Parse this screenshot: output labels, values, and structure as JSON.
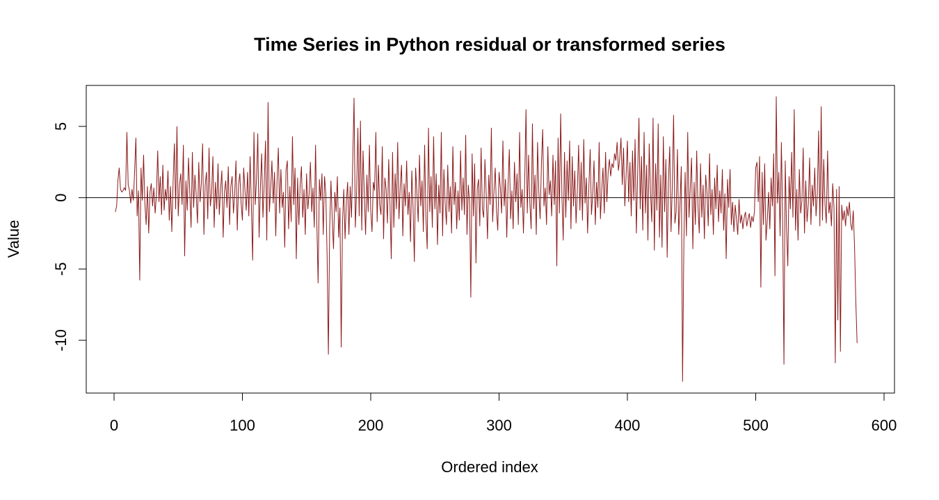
{
  "chart_data": {
    "type": "line",
    "title": "Time Series in Python residual or transformed series",
    "xlabel": "Ordered index",
    "ylabel": "Value",
    "xlim": [
      0,
      600
    ],
    "ylim": [
      -13,
      7
    ],
    "x_ticks": [
      0,
      100,
      200,
      300,
      400,
      500,
      600
    ],
    "y_ticks": [
      -10,
      -5,
      0,
      5
    ],
    "reference_line": 0,
    "grid": false,
    "legend": "none",
    "series_color": "#8B1A1A",
    "series": [
      {
        "x_start": 1,
        "x_step": 1,
        "values": [
          -1.0,
          -0.6,
          1.2,
          2.1,
          0.6,
          0.4,
          0.5,
          0.7,
          0.5,
          4.6,
          0.9,
          0.5,
          -0.4,
          0.6,
          -0.2,
          1.8,
          4.2,
          -1.3,
          0.5,
          -5.8,
          2.1,
          -0.2,
          3.0,
          -0.4,
          -1.9,
          0.8,
          -2.5,
          0.4,
          1.0,
          -0.6,
          0.7,
          -1.1,
          0.2,
          3.3,
          -0.3,
          1.5,
          -1.2,
          2.3,
          -0.9,
          0.6,
          -0.2,
          1.9,
          -1.6,
          0.8,
          -2.4,
          1.1,
          3.8,
          -0.8,
          5.0,
          -1.3,
          0.9,
          1.7,
          -0.5,
          3.7,
          -4.1,
          1.2,
          -0.9,
          2.8,
          0.4,
          -2.1,
          3.2,
          -0.7,
          1.6,
          0.2,
          -1.8,
          2.5,
          -0.3,
          1.0,
          3.8,
          -2.6,
          0.9,
          1.8,
          -1.5,
          3.5,
          -0.6,
          0.3,
          2.9,
          -2.1,
          1.1,
          -0.8,
          2.4,
          -1.2,
          0.6,
          1.9,
          -2.8,
          0.4,
          1.2,
          -0.7,
          2.2,
          -1.9,
          0.8,
          1.5,
          -1.1,
          0.3,
          2.6,
          -2.3,
          0.9,
          1.7,
          -0.4,
          -1.6,
          2.1,
          0.5,
          -0.9,
          1.8,
          -1.3,
          2.9,
          -0.6,
          -4.4,
          4.6,
          -0.5,
          1.3,
          4.5,
          -2.8,
          0.7,
          3.1,
          -1.4,
          1.0,
          4.0,
          -3.0,
          6.7,
          -1.0,
          0.6,
          2.6,
          -0.4,
          1.8,
          -2.7,
          1.2,
          3.5,
          -1.1,
          2.0,
          -0.7,
          0.4,
          -3.5,
          1.9,
          2.6,
          -2.2,
          0.8,
          -1.7,
          4.3,
          -0.5,
          2.1,
          -4.3,
          1.4,
          -1.9,
          0.9,
          2.2,
          -1.4,
          0.6,
          -2.6,
          1.7,
          -0.8,
          0.3,
          2.5,
          -1.0,
          0.7,
          -2.1,
          3.7,
          -1.8,
          -6.0,
          1.3,
          -0.2,
          1.7,
          -2.6,
          1.5,
          0.3,
          -4.1,
          -11.0,
          -2.2,
          1.2,
          -1.5,
          -3.6,
          0.4,
          -1.0,
          1.5,
          -2.8,
          -0.7,
          -10.5,
          -1.8,
          0.6,
          -2.9,
          -0.3,
          1.1,
          -2.6,
          0.8,
          -1.4,
          2.7,
          7.0,
          -2.1,
          0.4,
          4.9,
          -1.3,
          5.4,
          -2.3,
          3.3,
          0.2,
          -2.6,
          1.6,
          -1.0,
          3.7,
          -0.9,
          -2.4,
          1.1,
          0.5,
          4.6,
          -1.7,
          2.3,
          -0.5,
          -1.2,
          3.6,
          -2.9,
          1.4,
          0.6,
          -1.8,
          2.7,
          -0.4,
          -4.3,
          3.2,
          -2.1,
          1.7,
          -0.8,
          3.9,
          -1.5,
          0.8,
          2.3,
          -2.7,
          1.0,
          -0.6,
          2.6,
          -1.2,
          0.4,
          -3.1,
          1.9,
          -0.7,
          -4.5,
          2.1,
          0.3,
          -1.7,
          3.0,
          -0.6,
          1.2,
          -2.4,
          3.7,
          -1.4,
          -3.6,
          4.9,
          -1.0,
          1.5,
          -2.1,
          4.3,
          -0.8,
          1.7,
          -3.3,
          0.9,
          -1.1,
          4.6,
          -2.7,
          2.0,
          -0.4,
          -1.9,
          2.3,
          -1.0,
          0.8,
          -2.5,
          3.6,
          -0.5,
          1.1,
          -2.2,
          0.5,
          -1.6,
          3.3,
          -0.9,
          1.4,
          -1.2,
          4.4,
          -2.6,
          0.9,
          -0.3,
          -7.0,
          3.1,
          -1.3,
          2.4,
          -4.6,
          0.6,
          1.3,
          -2.0,
          3.5,
          -0.8,
          -1.4,
          2.7,
          0.2,
          -2.9,
          1.6,
          -0.5,
          4.9,
          -1.7,
          0.4,
          2.1,
          -0.9,
          -2.3,
          1.8,
          0.7,
          -1.1,
          4.0,
          -0.6,
          1.3,
          -2.8,
          0.9,
          3.4,
          -1.5,
          0.5,
          -2.2,
          2.5,
          -0.3,
          1.7,
          -1.9,
          4.6,
          -0.7,
          0.6,
          -2.5,
          1.2,
          6.2,
          -1.1,
          3.0,
          -0.4,
          -2.2,
          5.2,
          -0.8,
          1.6,
          -2.6,
          3.9,
          0.4,
          -1.5,
          2.3,
          4.8,
          -0.6,
          0.7,
          -1.9,
          3.6,
          0.2,
          1.2,
          -1.3,
          3.0,
          -0.5,
          2.6,
          -4.8,
          4.2,
          -1.1,
          5.9,
          0.1,
          -3.0,
          3.2,
          -1.4,
          2.6,
          -0.2,
          4.0,
          -2.2,
          2.9,
          -0.6,
          1.9,
          -1.8,
          0.5,
          3.7,
          -0.9,
          2.5,
          -1.6,
          4.1,
          -0.4,
          1.4,
          -2.5,
          0.8,
          3.4,
          -1.2,
          0.3,
          2.6,
          -1.9,
          1.1,
          -0.7,
          3.9,
          -1.5,
          0.6,
          2.1,
          -1.1,
          3.2,
          -0.3,
          1.8,
          2.7,
          1.5,
          2.4,
          2.1,
          3.1,
          2.6,
          3.9,
          1.9,
          2.7,
          4.2,
          0.9,
          3.5,
          -0.6,
          1.6,
          4.0,
          -0.3,
          2.5,
          -1.3,
          3.3,
          -0.2,
          4.1,
          -2.5,
          1.7,
          5.6,
          -0.8,
          2.9,
          -2.3,
          4.6,
          -1.1,
          2.3,
          -3.0,
          3.8,
          0.4,
          -1.7,
          5.6,
          -3.7,
          2.4,
          -0.9,
          5.2,
          -2.8,
          1.6,
          -3.5,
          4.3,
          -1.0,
          2.7,
          -4.2,
          1.2,
          3.6,
          -2.4,
          0.8,
          5.8,
          -1.8,
          -1.0,
          3.4,
          -2.6,
          -0.4,
          2.2,
          -12.9,
          -3.3,
          1.8,
          -2.7,
          4.6,
          -1.4,
          0.7,
          2.8,
          -3.6,
          1.1,
          -1.9,
          3.3,
          -0.6,
          -2.5,
          2.4,
          -1.4,
          0.9,
          -2.9,
          1.6,
          0.4,
          -2.0,
          3.1,
          -1.2,
          0.6,
          -2.6,
          1.4,
          -0.8,
          2.3,
          -1.7,
          0.5,
          -1.1,
          2.0,
          -2.3,
          0.3,
          -4.3,
          1.3,
          -0.7,
          2.0,
          -1.9,
          -0.3,
          -2.4,
          -0.5,
          -1.5,
          -2.6,
          -0.1,
          -1.8,
          -1.2,
          -2.2,
          -1.4,
          -1.0,
          -2.0,
          -1.5,
          -1.1,
          -2.1,
          -1.3,
          -1.7,
          -1.0,
          2.1,
          2.5,
          -0.3,
          2.9,
          -6.3,
          1.8,
          -1.9,
          2.4,
          -3.0,
          -1.6,
          0.4,
          -2.2,
          1.4,
          -0.6,
          3.1,
          -5.5,
          7.1,
          -0.4,
          1.8,
          -2.7,
          3.9,
          -1.5,
          -11.7,
          2.6,
          -2.1,
          -4.8,
          1.5,
          -0.8,
          3.2,
          -1.4,
          6.2,
          -2.3,
          0.6,
          -3.0,
          2.0,
          -1.1,
          -0.2,
          3.5,
          -2.5,
          1.2,
          -1.7,
          -0.4,
          2.8,
          -1.9,
          0.9,
          -0.6,
          2.1,
          -1.3,
          0.3,
          4.7,
          -2.0,
          6.4,
          -1.6,
          2.7,
          -0.5,
          -1.8,
          3.3,
          -1.1,
          -0.3,
          -2.0,
          1.0,
          -0.7,
          -11.6,
          0.6,
          -8.6,
          0.8,
          -10.8,
          -0.5,
          -1.6,
          -0.9,
          -2.0,
          -0.6,
          -1.3,
          -0.3,
          -1.8,
          -2.3,
          -0.9,
          -3.4,
          -7.3,
          -10.2
        ]
      }
    ]
  }
}
